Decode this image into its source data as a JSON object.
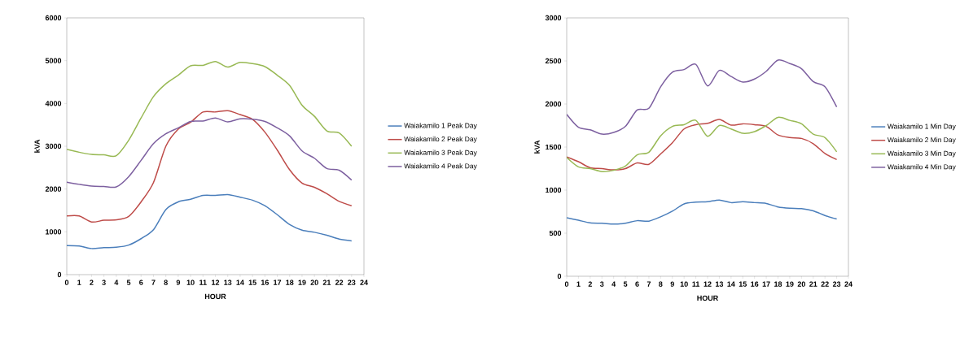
{
  "chart_data": [
    {
      "type": "line",
      "xlabel": "HOUR",
      "ylabel": "kVA",
      "x": [
        0,
        1,
        2,
        3,
        4,
        5,
        6,
        7,
        8,
        9,
        10,
        11,
        12,
        13,
        14,
        15,
        16,
        17,
        18,
        19,
        20,
        21,
        22,
        23
      ],
      "xlim": [
        0,
        24
      ],
      "xticks": [
        0,
        1,
        2,
        3,
        4,
        5,
        6,
        7,
        8,
        9,
        10,
        11,
        12,
        13,
        14,
        15,
        16,
        17,
        18,
        19,
        20,
        21,
        22,
        23,
        24
      ],
      "ylim": [
        0,
        6000
      ],
      "yticks": [
        0,
        1000,
        2000,
        3000,
        4000,
        5000,
        6000
      ],
      "legend": "right",
      "series": [
        {
          "name": "Waiakamilo 1 Peak Day",
          "color": "#4a7ebb",
          "values": [
            680,
            670,
            610,
            630,
            640,
            690,
            840,
            1050,
            1520,
            1700,
            1760,
            1850,
            1850,
            1870,
            1810,
            1740,
            1610,
            1400,
            1170,
            1040,
            990,
            920,
            830,
            790
          ]
        },
        {
          "name": "Waiakamilo 2 Peak Day",
          "color": "#be4b48",
          "values": [
            1370,
            1370,
            1230,
            1270,
            1280,
            1360,
            1700,
            2150,
            3000,
            3400,
            3560,
            3800,
            3800,
            3830,
            3740,
            3630,
            3330,
            2910,
            2450,
            2140,
            2040,
            1890,
            1710,
            1610
          ]
        },
        {
          "name": "Waiakamilo 3 Peak Day",
          "color": "#98b954",
          "values": [
            2930,
            2860,
            2810,
            2800,
            2780,
            3140,
            3660,
            4160,
            4460,
            4660,
            4880,
            4890,
            4980,
            4850,
            4960,
            4930,
            4860,
            4660,
            4420,
            3960,
            3700,
            3360,
            3310,
            3000
          ]
        },
        {
          "name": "Waiakamilo 4 Peak Day",
          "color": "#7d60a0",
          "values": [
            2160,
            2110,
            2070,
            2060,
            2050,
            2290,
            2670,
            3060,
            3290,
            3430,
            3580,
            3590,
            3660,
            3570,
            3640,
            3630,
            3580,
            3430,
            3240,
            2890,
            2720,
            2480,
            2440,
            2210
          ]
        }
      ]
    },
    {
      "type": "line",
      "xlabel": "HOUR",
      "ylabel": "kVA",
      "x": [
        0,
        1,
        2,
        3,
        4,
        5,
        6,
        7,
        8,
        9,
        10,
        11,
        12,
        13,
        14,
        15,
        16,
        17,
        18,
        19,
        20,
        21,
        22,
        23
      ],
      "xlim": [
        0,
        24
      ],
      "xticks": [
        0,
        1,
        2,
        3,
        4,
        5,
        6,
        7,
        8,
        9,
        10,
        11,
        12,
        13,
        14,
        15,
        16,
        17,
        18,
        19,
        20,
        21,
        22,
        23,
        24
      ],
      "ylim": [
        0,
        3000
      ],
      "yticks": [
        0,
        500,
        1000,
        1500,
        2000,
        2500,
        3000
      ],
      "legend": "right",
      "series": [
        {
          "name": "Waiakamilo 1 Min Day",
          "color": "#4a7ebb",
          "values": [
            680,
            650,
            620,
            615,
            605,
            615,
            645,
            640,
            690,
            755,
            840,
            860,
            865,
            885,
            855,
            865,
            855,
            845,
            805,
            790,
            785,
            760,
            705,
            665
          ]
        },
        {
          "name": "Waiakamilo 2 Min Day",
          "color": "#be4b48",
          "values": [
            1385,
            1330,
            1260,
            1250,
            1235,
            1250,
            1315,
            1300,
            1420,
            1550,
            1710,
            1760,
            1775,
            1820,
            1755,
            1770,
            1760,
            1740,
            1640,
            1610,
            1600,
            1540,
            1425,
            1355
          ]
        },
        {
          "name": "Waiakamilo 3 Min Day",
          "color": "#98b954",
          "values": [
            1380,
            1270,
            1250,
            1215,
            1230,
            1280,
            1410,
            1440,
            1630,
            1740,
            1760,
            1810,
            1625,
            1750,
            1710,
            1660,
            1680,
            1750,
            1845,
            1810,
            1770,
            1650,
            1610,
            1445
          ]
        },
        {
          "name": "Waiakamilo 4 Min Day",
          "color": "#7d60a0",
          "values": [
            1880,
            1730,
            1700,
            1650,
            1670,
            1740,
            1930,
            1950,
            2200,
            2370,
            2400,
            2460,
            2210,
            2390,
            2320,
            2255,
            2290,
            2380,
            2510,
            2470,
            2410,
            2260,
            2200,
            1965
          ]
        }
      ]
    }
  ]
}
